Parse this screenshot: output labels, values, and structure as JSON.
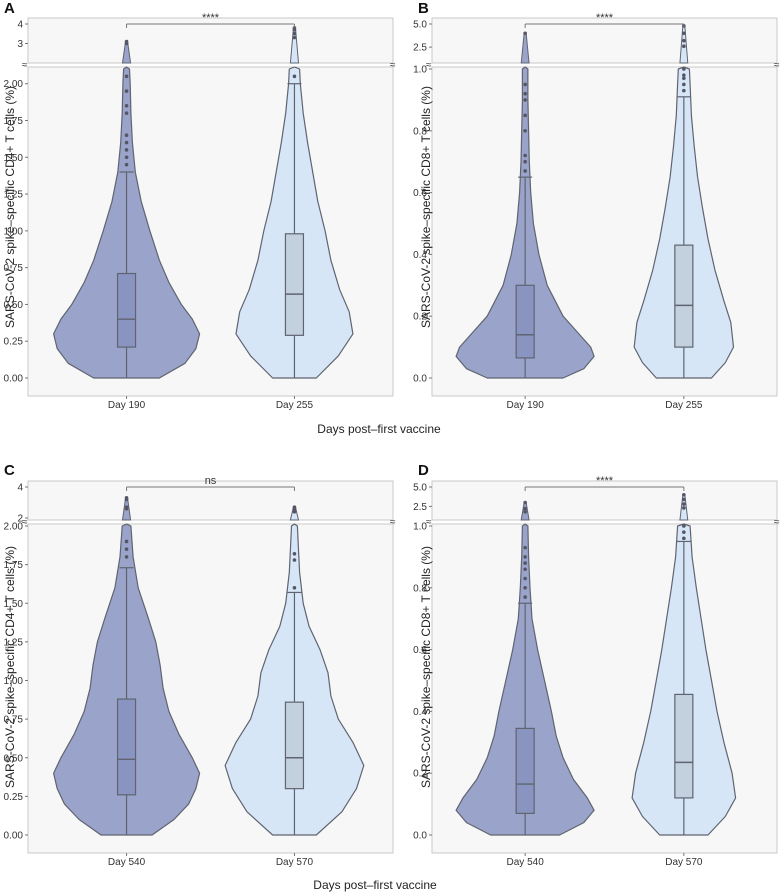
{
  "shared_xlabel_top": "Days post–first vaccine",
  "shared_xlabel_bottom": "Days post–first vaccine",
  "colors": {
    "violin1": "#9aa3c9",
    "violin2": "#d6e6f7",
    "box1": "#8a94c0",
    "box2": "#c3d0de",
    "outline": "#5f6470"
  },
  "chart_data": [
    {
      "panel": "A",
      "type": "violin",
      "ylabel": "SARS-CoV-2 spike–specific CD4+ T cells (%)",
      "categories": [
        "Day 190",
        "Day 255"
      ],
      "ylim": [
        0,
        2.1
      ],
      "yticks": [
        0,
        0.25,
        0.5,
        0.75,
        1.0,
        1.25,
        1.5,
        1.75,
        2.0
      ],
      "ytick_labels": [
        "0.00",
        "0.25",
        "0.50",
        "0.75",
        "1.00",
        "1.25",
        "1.50",
        "1.75",
        "2.00"
      ],
      "upper_ylim": [
        2.1,
        4.0
      ],
      "upper_yticks": [
        3,
        4
      ],
      "upper_ytick_labels": [
        "3",
        "4"
      ],
      "significance": "****",
      "series": [
        {
          "name": "Day 190",
          "box": {
            "q1": 0.21,
            "median": 0.4,
            "q3": 0.71,
            "whisker_low": 0,
            "whisker_high": 1.4
          },
          "violin_max": 3.1,
          "density": [
            [
              0,
              0.45
            ],
            [
              0.1,
              0.8
            ],
            [
              0.2,
              0.95
            ],
            [
              0.3,
              1.0
            ],
            [
              0.4,
              0.9
            ],
            [
              0.5,
              0.75
            ],
            [
              0.65,
              0.58
            ],
            [
              0.8,
              0.45
            ],
            [
              1.0,
              0.32
            ],
            [
              1.2,
              0.2
            ],
            [
              1.4,
              0.12
            ],
            [
              1.6,
              0.08
            ],
            [
              1.8,
              0.06
            ],
            [
              2.0,
              0.05
            ],
            [
              2.1,
              0.04
            ]
          ],
          "outliers": [
            1.45,
            1.5,
            1.55,
            1.6,
            1.65,
            1.8,
            1.85,
            1.95,
            2.05,
            3.0,
            3.1
          ]
        },
        {
          "name": "Day 255",
          "box": {
            "q1": 0.29,
            "median": 0.57,
            "q3": 0.98,
            "whisker_low": 0,
            "whisker_high": 2.0
          },
          "violin_max": 3.8,
          "density": [
            [
              0,
              0.3
            ],
            [
              0.15,
              0.6
            ],
            [
              0.3,
              0.8
            ],
            [
              0.45,
              0.75
            ],
            [
              0.6,
              0.62
            ],
            [
              0.8,
              0.5
            ],
            [
              1.0,
              0.42
            ],
            [
              1.2,
              0.32
            ],
            [
              1.4,
              0.25
            ],
            [
              1.6,
              0.18
            ],
            [
              1.8,
              0.12
            ],
            [
              2.0,
              0.08
            ],
            [
              2.1,
              0.07
            ]
          ],
          "outliers": [
            2.05,
            3.3,
            3.5,
            3.7,
            3.8
          ]
        }
      ]
    },
    {
      "panel": "B",
      "type": "violin",
      "ylabel": "SARS-CoV-2 spike–specific CD8+ T cells (%)",
      "categories": [
        "Day 190",
        "Day 255"
      ],
      "ylim": [
        0,
        1.0
      ],
      "yticks": [
        0,
        0.2,
        0.4,
        0.6,
        0.8,
        1.0
      ],
      "ytick_labels": [
        "0.0",
        "0.2",
        "0.4",
        "0.6",
        "0.8",
        "1.0"
      ],
      "upper_ylim": [
        1.0,
        5.0
      ],
      "upper_yticks": [
        2.5,
        5.0
      ],
      "upper_ytick_labels": [
        "2.5",
        "5.0"
      ],
      "significance": "****",
      "series": [
        {
          "name": "Day 190",
          "box": {
            "q1": 0.065,
            "median": 0.14,
            "q3": 0.3,
            "whisker_low": 0,
            "whisker_high": 0.65
          },
          "violin_max": 4.0,
          "density": [
            [
              0,
              0.55
            ],
            [
              0.03,
              0.85
            ],
            [
              0.07,
              1.0
            ],
            [
              0.1,
              0.95
            ],
            [
              0.15,
              0.75
            ],
            [
              0.2,
              0.55
            ],
            [
              0.3,
              0.32
            ],
            [
              0.4,
              0.2
            ],
            [
              0.5,
              0.12
            ],
            [
              0.6,
              0.08
            ],
            [
              0.7,
              0.06
            ],
            [
              0.8,
              0.05
            ],
            [
              0.9,
              0.04
            ],
            [
              1.0,
              0.04
            ]
          ],
          "outliers": [
            0.67,
            0.7,
            0.72,
            0.8,
            0.85,
            0.9,
            0.92,
            0.95,
            4.0
          ]
        },
        {
          "name": "Day 255",
          "box": {
            "q1": 0.1,
            "median": 0.235,
            "q3": 0.43,
            "whisker_low": 0,
            "whisker_high": 0.91
          },
          "violin_max": 4.8,
          "density": [
            [
              0,
              0.4
            ],
            [
              0.05,
              0.6
            ],
            [
              0.1,
              0.72
            ],
            [
              0.18,
              0.68
            ],
            [
              0.25,
              0.58
            ],
            [
              0.35,
              0.45
            ],
            [
              0.45,
              0.35
            ],
            [
              0.55,
              0.27
            ],
            [
              0.65,
              0.2
            ],
            [
              0.75,
              0.15
            ],
            [
              0.85,
              0.11
            ],
            [
              0.95,
              0.09
            ],
            [
              1.0,
              0.08
            ]
          ],
          "outliers": [
            0.93,
            0.95,
            0.97,
            0.98,
            1.0,
            2.6,
            3.2,
            4.0,
            4.8
          ]
        }
      ]
    },
    {
      "panel": "C",
      "type": "violin",
      "ylabel": "SARS-CoV-2 spike–specific CD4+ T cells (%)",
      "categories": [
        "Day 540",
        "Day 570"
      ],
      "ylim": [
        0,
        2.0
      ],
      "yticks": [
        0,
        0.25,
        0.5,
        0.75,
        1.0,
        1.25,
        1.5,
        1.75,
        2.0
      ],
      "ytick_labels": [
        "0.00",
        "0.25",
        "0.50",
        "0.75",
        "1.00",
        "1.25",
        "1.50",
        "1.75",
        "2.00"
      ],
      "upper_ylim": [
        2.0,
        4.0
      ],
      "upper_yticks": [
        2,
        4
      ],
      "upper_ytick_labels": [
        "2",
        "4"
      ],
      "significance": "ns",
      "series": [
        {
          "name": "Day 540",
          "box": {
            "q1": 0.26,
            "median": 0.49,
            "q3": 0.88,
            "whisker_low": 0,
            "whisker_high": 1.73
          },
          "violin_max": 3.3,
          "density": [
            [
              0,
              0.35
            ],
            [
              0.1,
              0.65
            ],
            [
              0.2,
              0.85
            ],
            [
              0.3,
              0.95
            ],
            [
              0.4,
              1.0
            ],
            [
              0.5,
              0.9
            ],
            [
              0.65,
              0.72
            ],
            [
              0.8,
              0.58
            ],
            [
              0.95,
              0.5
            ],
            [
              1.1,
              0.46
            ],
            [
              1.25,
              0.4
            ],
            [
              1.4,
              0.3
            ],
            [
              1.6,
              0.16
            ],
            [
              1.8,
              0.09
            ],
            [
              2.0,
              0.06
            ]
          ],
          "outliers": [
            1.8,
            1.85,
            1.9,
            2.6,
            2.7,
            3.2,
            3.3
          ]
        },
        {
          "name": "Day 570",
          "box": {
            "q1": 0.3,
            "median": 0.5,
            "q3": 0.86,
            "whisker_low": 0,
            "whisker_high": 1.57
          },
          "violin_max": 2.7,
          "density": [
            [
              0,
              0.3
            ],
            [
              0.15,
              0.65
            ],
            [
              0.3,
              0.85
            ],
            [
              0.45,
              0.95
            ],
            [
              0.6,
              0.8
            ],
            [
              0.75,
              0.6
            ],
            [
              0.9,
              0.5
            ],
            [
              1.05,
              0.46
            ],
            [
              1.2,
              0.35
            ],
            [
              1.35,
              0.2
            ],
            [
              1.5,
              0.12
            ],
            [
              1.7,
              0.07
            ],
            [
              1.9,
              0.05
            ],
            [
              2.0,
              0.04
            ]
          ],
          "outliers": [
            1.6,
            1.78,
            1.82,
            2.4,
            2.5,
            2.6,
            2.7
          ]
        }
      ]
    },
    {
      "panel": "D",
      "type": "violin",
      "ylabel": "SARS-CoV-2 spike–specific CD8+ T cells (%)",
      "categories": [
        "Day 540",
        "Day 570"
      ],
      "ylim": [
        0,
        1.0
      ],
      "yticks": [
        0,
        0.2,
        0.4,
        0.6,
        0.8,
        1.0
      ],
      "ytick_labels": [
        "0.0",
        "0.2",
        "0.4",
        "0.6",
        "0.8",
        "1.0"
      ],
      "upper_ylim": [
        1.0,
        5.0
      ],
      "upper_yticks": [
        2.5,
        5.0
      ],
      "upper_ytick_labels": [
        "2.5",
        "5.0"
      ],
      "significance": "****",
      "series": [
        {
          "name": "Day 540",
          "box": {
            "q1": 0.07,
            "median": 0.165,
            "q3": 0.345,
            "whisker_low": 0,
            "whisker_high": 0.75
          },
          "violin_max": 3.0,
          "density": [
            [
              0,
              0.5
            ],
            [
              0.04,
              0.85
            ],
            [
              0.08,
              1.0
            ],
            [
              0.12,
              0.9
            ],
            [
              0.18,
              0.7
            ],
            [
              0.25,
              0.55
            ],
            [
              0.32,
              0.45
            ],
            [
              0.4,
              0.38
            ],
            [
              0.5,
              0.28
            ],
            [
              0.6,
              0.18
            ],
            [
              0.7,
              0.1
            ],
            [
              0.8,
              0.07
            ],
            [
              0.9,
              0.05
            ],
            [
              1.0,
              0.04
            ]
          ],
          "outliers": [
            0.77,
            0.8,
            0.83,
            0.86,
            0.88,
            0.9,
            0.93,
            1.8,
            2.2,
            3.0
          ]
        },
        {
          "name": "Day 570",
          "box": {
            "q1": 0.12,
            "median": 0.235,
            "q3": 0.455,
            "whisker_low": 0,
            "whisker_high": 0.95
          },
          "violin_max": 4.0,
          "density": [
            [
              0,
              0.35
            ],
            [
              0.06,
              0.6
            ],
            [
              0.12,
              0.75
            ],
            [
              0.2,
              0.7
            ],
            [
              0.3,
              0.58
            ],
            [
              0.4,
              0.48
            ],
            [
              0.5,
              0.4
            ],
            [
              0.6,
              0.32
            ],
            [
              0.7,
              0.25
            ],
            [
              0.8,
              0.18
            ],
            [
              0.9,
              0.12
            ],
            [
              1.0,
              0.09
            ]
          ],
          "outliers": [
            0.96,
            0.98,
            1.0,
            2.3,
            2.8,
            3.4,
            4.0
          ]
        }
      ]
    }
  ]
}
